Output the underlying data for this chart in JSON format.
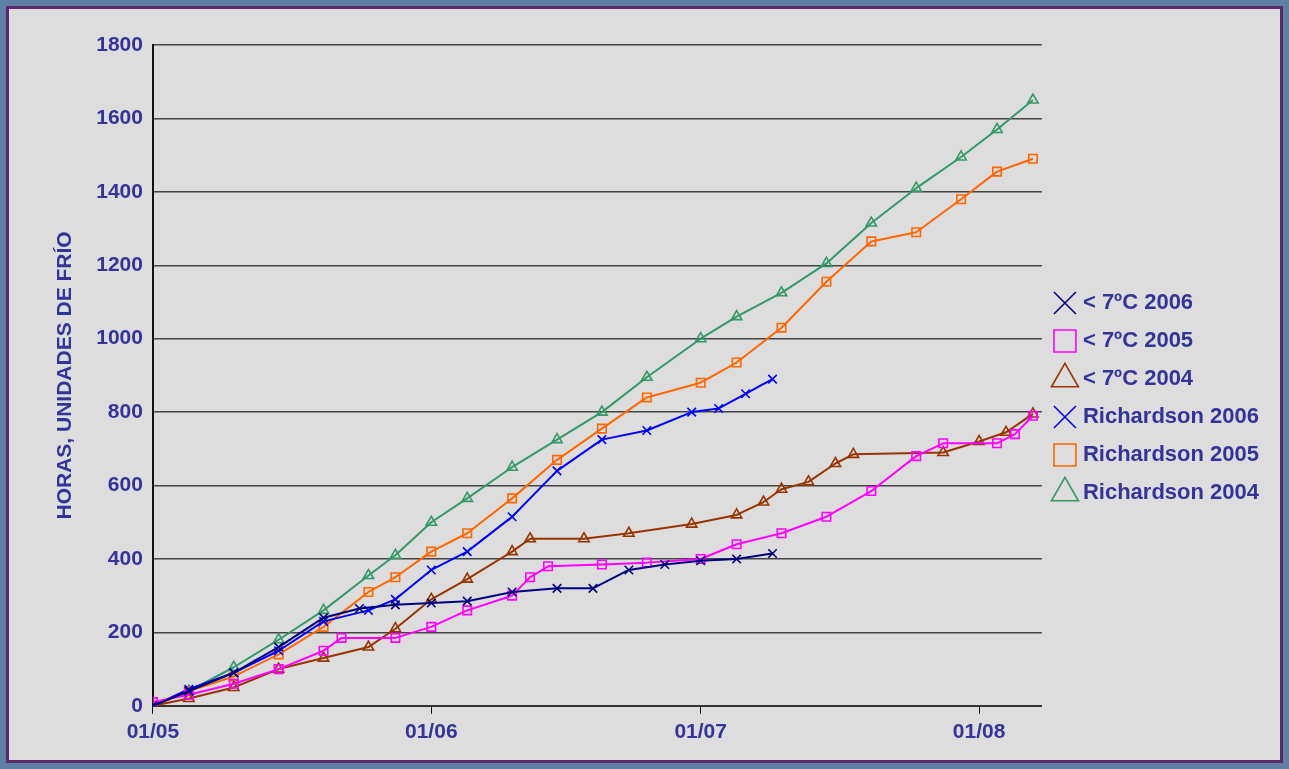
{
  "chart_data": {
    "type": "line",
    "ylabel": "HORAS, UNIDADES DE FRÍO",
    "xlim": [
      "--05-01",
      "--08-08"
    ],
    "xticks": [
      {
        "value": "--05-01",
        "label": "01/05"
      },
      {
        "value": "--06-01",
        "label": "01/06"
      },
      {
        "value": "--07-01",
        "label": "01/07"
      },
      {
        "value": "--08-01",
        "label": "01/08"
      }
    ],
    "ylim": [
      0,
      1800
    ],
    "yticks": [
      0,
      200,
      400,
      600,
      800,
      1000,
      1200,
      1400,
      1600,
      1800
    ],
    "grid": "y",
    "legend": "right",
    "line_style": "solid",
    "series": [
      {
        "name": "< 7ºC 2006",
        "color": "#000080",
        "marker": "cross",
        "x": [
          "--05-01",
          "--05-05",
          "--05-10",
          "--05-15",
          "--05-20",
          "--05-24",
          "--05-28",
          "--06-01",
          "--06-05",
          "--06-10",
          "--06-15",
          "--06-19",
          "--06-23",
          "--06-27",
          "--07-01",
          "--07-05",
          "--07-09"
        ],
        "values": [
          0,
          40,
          90,
          160,
          240,
          265,
          275,
          280,
          285,
          310,
          320,
          320,
          370,
          385,
          395,
          400,
          415
        ]
      },
      {
        "name": "< 7ºC 2005",
        "color": "#ff00ff",
        "marker": "square",
        "x": [
          "--05-01",
          "--05-05",
          "--05-10",
          "--05-15",
          "--05-20",
          "--05-22",
          "--05-28",
          "--06-01",
          "--06-05",
          "--06-10",
          "--06-12",
          "--06-14",
          "--06-20",
          "--06-25",
          "--07-01",
          "--07-05",
          "--07-10",
          "--07-15",
          "--07-20",
          "--07-25",
          "--07-28",
          "--08-03",
          "--08-05",
          "--08-07"
        ],
        "values": [
          10,
          30,
          60,
          100,
          150,
          185,
          185,
          215,
          260,
          300,
          350,
          380,
          385,
          390,
          400,
          440,
          470,
          515,
          585,
          680,
          715,
          715,
          740,
          790
        ]
      },
      {
        "name": "< 7ºC 2004",
        "color": "#993300",
        "marker": "triangle",
        "x": [
          "--05-01",
          "--05-05",
          "--05-10",
          "--05-15",
          "--05-20",
          "--05-25",
          "--05-28",
          "--06-01",
          "--06-05",
          "--06-10",
          "--06-12",
          "--06-18",
          "--06-23",
          "--06-30",
          "--07-05",
          "--07-08",
          "--07-10",
          "--07-13",
          "--07-16",
          "--07-18",
          "--07-28",
          "--08-01",
          "--08-04",
          "--08-07"
        ],
        "values": [
          0,
          20,
          50,
          100,
          130,
          160,
          210,
          290,
          345,
          420,
          455,
          455,
          470,
          495,
          520,
          555,
          590,
          610,
          660,
          685,
          690,
          720,
          745,
          795
        ]
      },
      {
        "name": "Richardson 2006",
        "color": "#0000ff",
        "marker": "cross",
        "x": [
          "--05-01",
          "--05-05",
          "--05-10",
          "--05-15",
          "--05-20",
          "--05-25",
          "--05-28",
          "--06-01",
          "--06-05",
          "--06-10",
          "--06-15",
          "--06-20",
          "--06-25",
          "--06-30",
          "--07-03",
          "--07-06",
          "--07-09"
        ],
        "values": [
          0,
          45,
          90,
          150,
          230,
          260,
          290,
          370,
          420,
          515,
          640,
          725,
          750,
          800,
          810,
          850,
          890
        ]
      },
      {
        "name": "Richardson 2005",
        "color": "#ff6600",
        "marker": "square",
        "x": [
          "--05-01",
          "--05-05",
          "--05-10",
          "--05-15",
          "--05-20",
          "--05-25",
          "--05-28",
          "--06-01",
          "--06-05",
          "--06-10",
          "--06-15",
          "--06-20",
          "--06-25",
          "--07-01",
          "--07-05",
          "--07-10",
          "--07-15",
          "--07-20",
          "--07-25",
          "--07-30",
          "--08-03",
          "--08-07"
        ],
        "values": [
          0,
          40,
          80,
          140,
          215,
          310,
          350,
          420,
          470,
          565,
          670,
          755,
          840,
          880,
          935,
          1030,
          1155,
          1265,
          1290,
          1380,
          1455,
          1490
        ]
      },
      {
        "name": "Richardson 2004",
        "color": "#339966",
        "marker": "triangle",
        "x": [
          "--05-01",
          "--05-05",
          "--05-10",
          "--05-15",
          "--05-20",
          "--05-25",
          "--05-28",
          "--06-01",
          "--06-05",
          "--06-10",
          "--06-15",
          "--06-20",
          "--06-25",
          "--07-01",
          "--07-05",
          "--07-10",
          "--07-15",
          "--07-20",
          "--07-25",
          "--07-30",
          "--08-03",
          "--08-07"
        ],
        "values": [
          0,
          40,
          105,
          180,
          260,
          355,
          410,
          500,
          565,
          650,
          725,
          800,
          895,
          1000,
          1060,
          1125,
          1205,
          1315,
          1410,
          1495,
          1570,
          1650
        ]
      }
    ]
  }
}
